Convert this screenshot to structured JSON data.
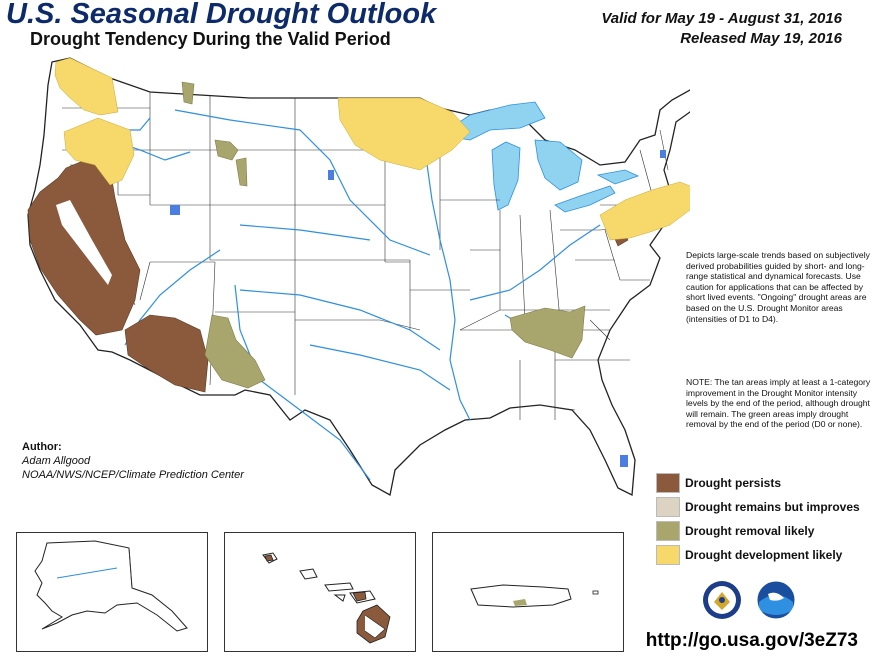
{
  "title": "U.S. Seasonal Drought Outlook",
  "subtitle": "Drought Tendency During the Valid Period",
  "valid_period": "Valid for May 19 - August 31, 2016",
  "released": "Released May 19, 2016",
  "description_text": "Depicts large-scale trends based on subjectively derived probabilities guided by short- and long-range statistical and dynamical forecasts. Use caution for applications that can be affected by short lived events. \"Ongoing\" drought areas are based on the U.S. Drought Monitor areas (intensities of D1 to D4).",
  "note_text": "NOTE: The tan areas imply at least a 1-category improvement in the Drought Monitor intensity levels by the end of the period, although drought will remain. The green areas imply drought removal by the end of the period (D0 or none).",
  "author": {
    "header": "Author:",
    "name": "Adam Allgood",
    "organization": "NOAA/NWS/NCEP/Climate Prediction Center"
  },
  "legend": [
    {
      "label": "Drought persists",
      "color": "#8b5a3c"
    },
    {
      "label": "Drought remains but improves",
      "color": "#ddd3c3"
    },
    {
      "label": "Drought removal likely",
      "color": "#a8a66c"
    },
    {
      "label": "Drought development likely",
      "color": "#f7d96b"
    }
  ],
  "url": "http://go.usa.gov/3eZ73",
  "colors": {
    "title_blue": "#0d2b6b",
    "water": "#8fd3f0",
    "rivers": "#2f8fe0"
  },
  "icons": [
    "doc-seal-icon",
    "noaa-logo-icon"
  ]
}
